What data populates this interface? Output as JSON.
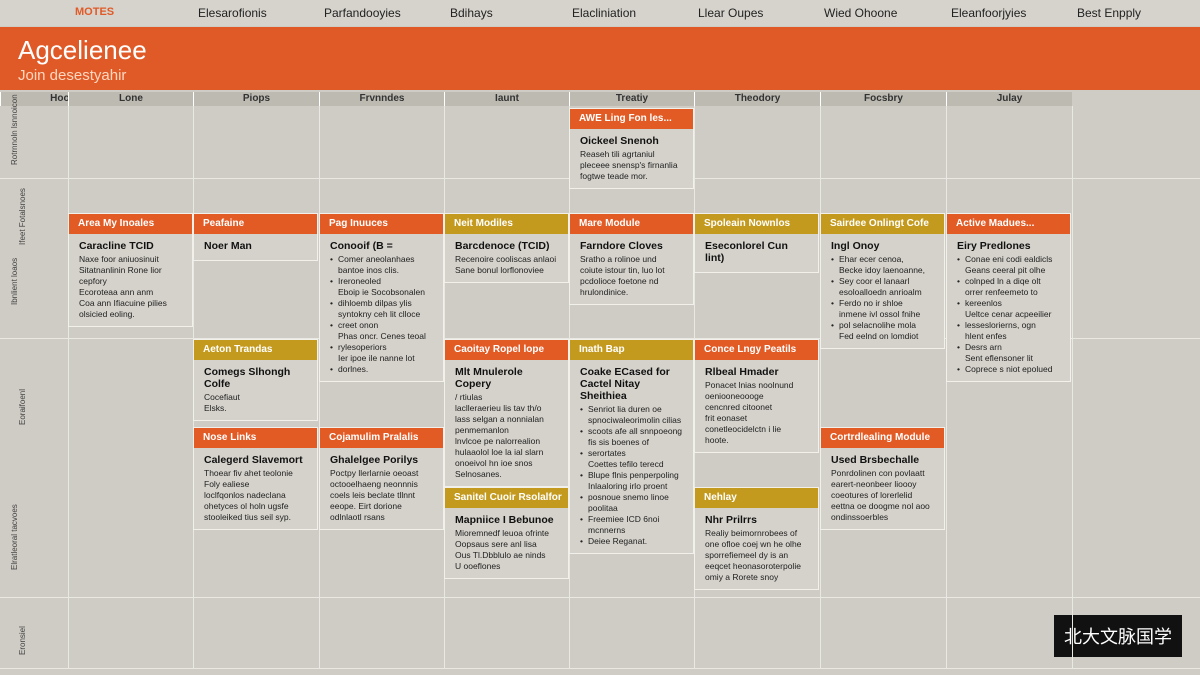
{
  "nav": {
    "brand": "MOTES",
    "items": [
      "Elesarofionis",
      "Parfandooyies",
      "Bdihays",
      "Elacliniation",
      "Llear Oupes",
      "Wied Ohoone",
      "Eleanfoorjyies",
      "Best Enpply"
    ]
  },
  "header": {
    "title": "Agcelienee",
    "subtitle": "Join desestyahir"
  },
  "columns": [
    "Hootiay",
    "Lone",
    "Piops",
    "Frvnndes",
    "Iaunt",
    "Treatiy",
    "Theodory",
    "Focsbry",
    "Julay"
  ],
  "row_labels": [
    "Rotrnnoln lsnnoicon",
    "Ifeet Fotalsnoes",
    "Ibnlient loaos",
    "Eoraifoenl",
    "Elratleoral tacvoes",
    "Eronsiel"
  ],
  "cards": [
    {
      "header": "AWE Ling Fon les...",
      "title": "Oickeel Snenoh",
      "body": [
        "Reaseh tili agrtaniul",
        "pleceee snensp's firnanlia",
        "fogtwe teade mor."
      ],
      "bullets": false
    },
    {
      "header": "Area My Inoales",
      "title": "Caracline TCID",
      "body": [
        "Naxe foor aniuosinuit",
        "Sitatnanlinin Rone lior",
        "cepfory",
        "Ecoroteaa ann anm",
        "Coa ann Ifiacuine pilies",
        "olsicied eoling."
      ],
      "bullets": false
    },
    {
      "header": "Peafaine",
      "title": "Noer Man",
      "body": [],
      "bullets": false
    },
    {
      "header": "Pag Inuuces",
      "title": "Conooif (B =",
      "body": [
        "Comer aneolanhaes",
        "bantoe inos clis.",
        "Ireroneoled",
        "Eboip ie Socobsonalen",
        "dihloemb dilpas ylis",
        "syntokny ceh lit clloce",
        "creet onon",
        "Phas oncr. Cenes teoal",
        "rylesoperiors",
        "Ier ipoe ile nanne lot",
        "dorlnes."
      ],
      "bullets": true
    },
    {
      "header": "Neit Modiles",
      "title": "Barcdenoce (TCID)",
      "body": [
        "Recenoire cooliscas anlaoi",
        "Sane bonul lorflonoviee"
      ],
      "bullets": false
    },
    {
      "header": "Mare Module",
      "title": "Farndore Cloves",
      "body": [
        "Sratho a rolinoe und",
        "coiute istour tin, luo lot",
        "pcdolioce foetone nd",
        "hrulondinice."
      ],
      "bullets": false
    },
    {
      "header": "Spoleain Nownlos",
      "title": "Eseconlorel Cun lint)",
      "body": [],
      "bullets": false
    },
    {
      "header": "Sairdee Onlingt Cofe",
      "title": "Ingl Onoy",
      "body": [
        "Ehar ecer cenoa,",
        "Becke idoy laenoanne,",
        "Sey coor el lanaarl",
        "esoloalloedn anrioalm",
        "Ferdo no ir shloe",
        "inmene ivl ossol fnihe",
        "pol selacnolihe mola",
        "Fed eelnd on lomdiot"
      ],
      "bullets": true
    },
    {
      "header": "Active Madues...",
      "title": "Eiry Predlones",
      "body": [
        "Conae eni codi ealdicls",
        "Geans ceeral pit olhe",
        "colnped ln a diqe olt",
        "orrer renfeemeto to",
        "kereenlos",
        "Ueltce cenar acpeeilier",
        "lesseslorierns, ogn",
        "hlent enfes",
        "Desrs arn",
        "Sent eflensoner lit",
        "Coprece s niot epolued"
      ],
      "bullets": true
    },
    {
      "header": "Aeton Trandas",
      "title": "Comegs Slhongh Colfe",
      "body": [
        "Cocefiaut",
        "Elsks."
      ],
      "bullets": false
    },
    {
      "header": "Caoitay Ropel lope",
      "title": "Mlt Mnulerole Copery",
      "body": [
        "/ rtiulas",
        "laclleraerieu lis tav th/o",
        "lass selgan a nonnialan",
        "penmemanlon",
        "lnvlcoe pe nalorrealion",
        "hulaaolol loe la ial slarn",
        "onoeivol hn ioe snos",
        "Selnosanes."
      ],
      "bullets": false
    },
    {
      "header": "Inath Bap",
      "title": "Coake ECased for Cactel Nitay Sheithiea",
      "body": [
        "Senriot lia duren oe",
        "spnociwaleorimolin cilias",
        "scoots afe all snnpoeong",
        "fis sis boenes of",
        "serortates",
        "Coettes tefilo terecd",
        "Blupe flnis penperpoling",
        "Inlaaloring irlo proent",
        "posnoue snemo linoe",
        "poolitaa",
        "Freemiee ICD 6noi",
        "mcnnerns",
        "Deiee Reganat."
      ],
      "bullets": true
    },
    {
      "header": "Conce Lngy Peatils",
      "title": "Rlbeal Hmader",
      "body": [
        "Ponacet lnias noolnund",
        "oeniooneoooge",
        "cencnred citoonet",
        "frit eonaset",
        "conetleocidelctn i lie",
        "hoote."
      ],
      "bullets": false
    },
    {
      "header": "Nose Links",
      "title": "Calegerd Slavemort",
      "body": [
        "Thoear fiv ahet teolonie",
        "Foly ealiese",
        "loclfqonlos nadeclana",
        "ohetyces ol holn ugsfe",
        "stooleiked tius seil syp."
      ],
      "bullets": false
    },
    {
      "header": "Cojamulim Pralalis",
      "title": "Ghalelgee Porilys",
      "body": [
        "Poctpy llerlarnie oeoast",
        "octooelhaeng neonnnis",
        "coels leis beclate tllnnt",
        "eeope. Eirt dorione",
        "odlnlaotl rsans"
      ],
      "bullets": false
    },
    {
      "header": "Cortrdlealing Module",
      "title": "Used Brsbechalle",
      "body": [
        "Ponrdolinen con povlaatt",
        "earert-neonbeer lioooy",
        "coeotures of lorerlelid",
        "eettna oe doogme nol aoo",
        "ondinssoerbles"
      ],
      "bullets": false
    },
    {
      "header": "Sanitel Cuoir Rsolalfor",
      "title": "Mapniice I Bebunoe",
      "body": [
        "Mioremnedf leuoa ofrinte",
        "Oopsaus sere anl lisa",
        "Ous Tl.Dbblulo ae ninds",
        "U ooeflones"
      ],
      "bullets": false
    },
    {
      "header": "Nehlay",
      "title": "Nhr Prilrrs",
      "body": [
        "Realiy beimornrobees of",
        "one ofloe coej wn he olhe",
        "sporrefiemeel dy is an",
        "eeqcet heonasoroterpolie",
        "omiy a Rorete snoy"
      ],
      "bullets": false
    }
  ],
  "watermark": "北大文脉国学"
}
